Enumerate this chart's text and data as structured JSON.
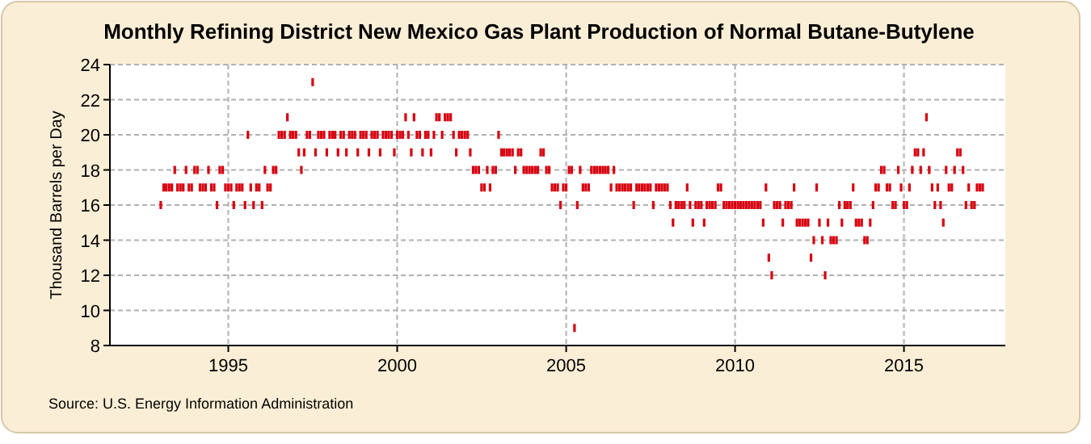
{
  "chart_data": {
    "type": "scatter",
    "title": "Monthly Refining District New Mexico Gas Plant Production of Normal Butane-Butylene",
    "ylabel": "Thousand Barrels per Day",
    "annotations": [
      "Source: U.S. Energy Information Administration"
    ],
    "marker": "square",
    "grid": true,
    "xlim": [
      "1991-07",
      "2018-01"
    ],
    "xticks": [
      {
        "value": "1995-01",
        "label": "1995"
      },
      {
        "value": "2000-01",
        "label": "2000"
      },
      {
        "value": "2005-01",
        "label": "2005"
      },
      {
        "value": "2010-01",
        "label": "2010"
      },
      {
        "value": "2015-01",
        "label": "2015"
      }
    ],
    "ylim": [
      8,
      24
    ],
    "yticks": [
      8,
      10,
      12,
      14,
      16,
      18,
      20,
      22,
      24
    ],
    "x": [
      "1993-01",
      "1993-02",
      "1993-03",
      "1993-04",
      "1993-05",
      "1993-06",
      "1993-07",
      "1993-08",
      "1993-09",
      "1993-10",
      "1993-11",
      "1993-12",
      "1994-01",
      "1994-02",
      "1994-03",
      "1994-04",
      "1994-05",
      "1994-06",
      "1994-07",
      "1994-08",
      "1994-09",
      "1994-10",
      "1994-11",
      "1994-12",
      "1995-01",
      "1995-02",
      "1995-03",
      "1995-04",
      "1995-05",
      "1995-06",
      "1995-07",
      "1995-08",
      "1995-09",
      "1995-10",
      "1995-11",
      "1995-12",
      "1996-01",
      "1996-02",
      "1996-03",
      "1996-04",
      "1996-05",
      "1996-06",
      "1996-07",
      "1996-08",
      "1996-09",
      "1996-10",
      "1996-11",
      "1996-12",
      "1997-01",
      "1997-02",
      "1997-03",
      "1997-04",
      "1997-05",
      "1997-06",
      "1997-07",
      "1997-08",
      "1997-09",
      "1997-10",
      "1997-11",
      "1997-12",
      "1998-01",
      "1998-02",
      "1998-03",
      "1998-04",
      "1998-05",
      "1998-06",
      "1998-07",
      "1998-08",
      "1998-09",
      "1998-10",
      "1998-11",
      "1998-12",
      "1999-01",
      "1999-02",
      "1999-03",
      "1999-04",
      "1999-05",
      "1999-06",
      "1999-07",
      "1999-08",
      "1999-09",
      "1999-10",
      "1999-11",
      "1999-12",
      "2000-01",
      "2000-02",
      "2000-03",
      "2000-04",
      "2000-05",
      "2000-06",
      "2000-07",
      "2000-08",
      "2000-09",
      "2000-10",
      "2000-11",
      "2000-12",
      "2001-01",
      "2001-02",
      "2001-03",
      "2001-04",
      "2001-05",
      "2001-06",
      "2001-07",
      "2001-08",
      "2001-09",
      "2001-10",
      "2001-11",
      "2001-12",
      "2002-01",
      "2002-02",
      "2002-03",
      "2002-04",
      "2002-05",
      "2002-06",
      "2002-07",
      "2002-08",
      "2002-09",
      "2002-10",
      "2002-11",
      "2002-12",
      "2003-01",
      "2003-02",
      "2003-03",
      "2003-04",
      "2003-05",
      "2003-06",
      "2003-07",
      "2003-08",
      "2003-09",
      "2003-10",
      "2003-11",
      "2003-12",
      "2004-01",
      "2004-02",
      "2004-03",
      "2004-04",
      "2004-05",
      "2004-06",
      "2004-07",
      "2004-08",
      "2004-09",
      "2004-10",
      "2004-11",
      "2004-12",
      "2005-01",
      "2005-02",
      "2005-03",
      "2005-04",
      "2005-05",
      "2005-06",
      "2005-07",
      "2005-08",
      "2005-09",
      "2005-10",
      "2005-11",
      "2005-12",
      "2006-01",
      "2006-02",
      "2006-03",
      "2006-04",
      "2006-05",
      "2006-06",
      "2006-07",
      "2006-08",
      "2006-09",
      "2006-10",
      "2006-11",
      "2006-12",
      "2007-01",
      "2007-02",
      "2007-03",
      "2007-04",
      "2007-05",
      "2007-06",
      "2007-07",
      "2007-08",
      "2007-09",
      "2007-10",
      "2007-11",
      "2007-12",
      "2008-01",
      "2008-02",
      "2008-03",
      "2008-04",
      "2008-05",
      "2008-06",
      "2008-07",
      "2008-08",
      "2008-09",
      "2008-10",
      "2008-11",
      "2008-12",
      "2009-01",
      "2009-02",
      "2009-03",
      "2009-04",
      "2009-05",
      "2009-06",
      "2009-07",
      "2009-08",
      "2009-09",
      "2009-10",
      "2009-11",
      "2009-12",
      "2010-01",
      "2010-02",
      "2010-03",
      "2010-04",
      "2010-05",
      "2010-06",
      "2010-07",
      "2010-08",
      "2010-09",
      "2010-10",
      "2010-11",
      "2010-12",
      "2011-01",
      "2011-02",
      "2011-03",
      "2011-04",
      "2011-05",
      "2011-06",
      "2011-07",
      "2011-08",
      "2011-09",
      "2011-10",
      "2011-11",
      "2011-12",
      "2012-01",
      "2012-02",
      "2012-03",
      "2012-04",
      "2012-05",
      "2012-06",
      "2012-07",
      "2012-08",
      "2012-09",
      "2012-10",
      "2012-11",
      "2012-12",
      "2013-01",
      "2013-02",
      "2013-03",
      "2013-04",
      "2013-05",
      "2013-06",
      "2013-07",
      "2013-08",
      "2013-09",
      "2013-10",
      "2013-11",
      "2013-12",
      "2014-01",
      "2014-02",
      "2014-03",
      "2014-04",
      "2014-05",
      "2014-06",
      "2014-07",
      "2014-08",
      "2014-09",
      "2014-10",
      "2014-11",
      "2014-12",
      "2015-01",
      "2015-02",
      "2015-03",
      "2015-04",
      "2015-05",
      "2015-06",
      "2015-07",
      "2015-08",
      "2015-09",
      "2015-10",
      "2015-11",
      "2015-12",
      "2016-01",
      "2016-02",
      "2016-03",
      "2016-04",
      "2016-05",
      "2016-06",
      "2016-07",
      "2016-08",
      "2016-09",
      "2016-10",
      "2016-11",
      "2016-12",
      "2017-01",
      "2017-02",
      "2017-03",
      "2017-04",
      "2017-05"
    ],
    "series": [
      {
        "color": "#d7000f",
        "values": [
          16,
          17,
          17,
          17,
          17,
          18,
          17,
          17,
          17,
          18,
          17,
          17,
          18,
          18,
          17,
          17,
          17,
          18,
          17,
          17,
          16,
          18,
          18,
          17,
          17,
          17,
          16,
          17,
          17,
          17,
          16,
          20,
          17,
          16,
          17,
          17,
          16,
          18,
          17,
          17,
          18,
          18,
          20,
          20,
          20,
          21,
          20,
          20,
          20,
          19,
          18,
          19,
          20,
          20,
          23,
          19,
          20,
          20,
          20,
          19,
          20,
          20,
          20,
          19,
          20,
          20,
          19,
          20,
          20,
          20,
          19,
          20,
          20,
          20,
          19,
          20,
          20,
          20,
          19,
          20,
          20,
          20,
          20,
          19,
          20,
          20,
          20,
          21,
          20,
          19,
          21,
          20,
          20,
          19,
          20,
          20,
          19,
          20,
          21,
          21,
          20,
          21,
          21,
          21,
          20,
          19,
          20,
          20,
          20,
          20,
          19,
          18,
          18,
          18,
          17,
          17,
          18,
          17,
          18,
          18,
          20,
          19,
          19,
          19,
          19,
          19,
          18,
          19,
          19,
          18,
          18,
          18,
          18,
          18,
          18,
          19,
          19,
          18,
          18,
          17,
          17,
          17,
          16,
          17,
          17,
          18,
          18,
          9,
          16,
          18,
          17,
          17,
          17,
          18,
          18,
          18,
          18,
          18,
          18,
          18,
          17,
          18,
          17,
          17,
          17,
          17,
          17,
          17,
          16,
          17,
          17,
          17,
          17,
          17,
          17,
          16,
          17,
          17,
          17,
          17,
          17,
          16,
          15,
          16,
          16,
          16,
          16,
          17,
          16,
          15,
          16,
          16,
          16,
          15,
          16,
          16,
          16,
          16,
          17,
          17,
          16,
          16,
          16,
          16,
          16,
          16,
          16,
          16,
          16,
          16,
          16,
          16,
          16,
          16,
          15,
          17,
          13,
          12,
          16,
          16,
          16,
          15,
          16,
          16,
          16,
          17,
          15,
          15,
          15,
          15,
          15,
          13,
          14,
          17,
          15,
          14,
          12,
          15,
          14,
          14,
          14,
          16,
          15,
          16,
          16,
          16,
          17,
          15,
          15,
          15,
          14,
          14,
          15,
          16,
          17,
          17,
          18,
          18,
          17,
          17,
          16,
          16,
          18,
          17,
          16,
          16,
          17,
          18,
          19,
          19,
          18,
          19,
          21,
          18,
          17,
          16,
          17,
          16,
          15,
          18,
          17,
          17,
          18,
          19,
          19,
          18,
          16,
          17,
          16,
          16,
          17,
          17,
          17
        ]
      }
    ]
  }
}
